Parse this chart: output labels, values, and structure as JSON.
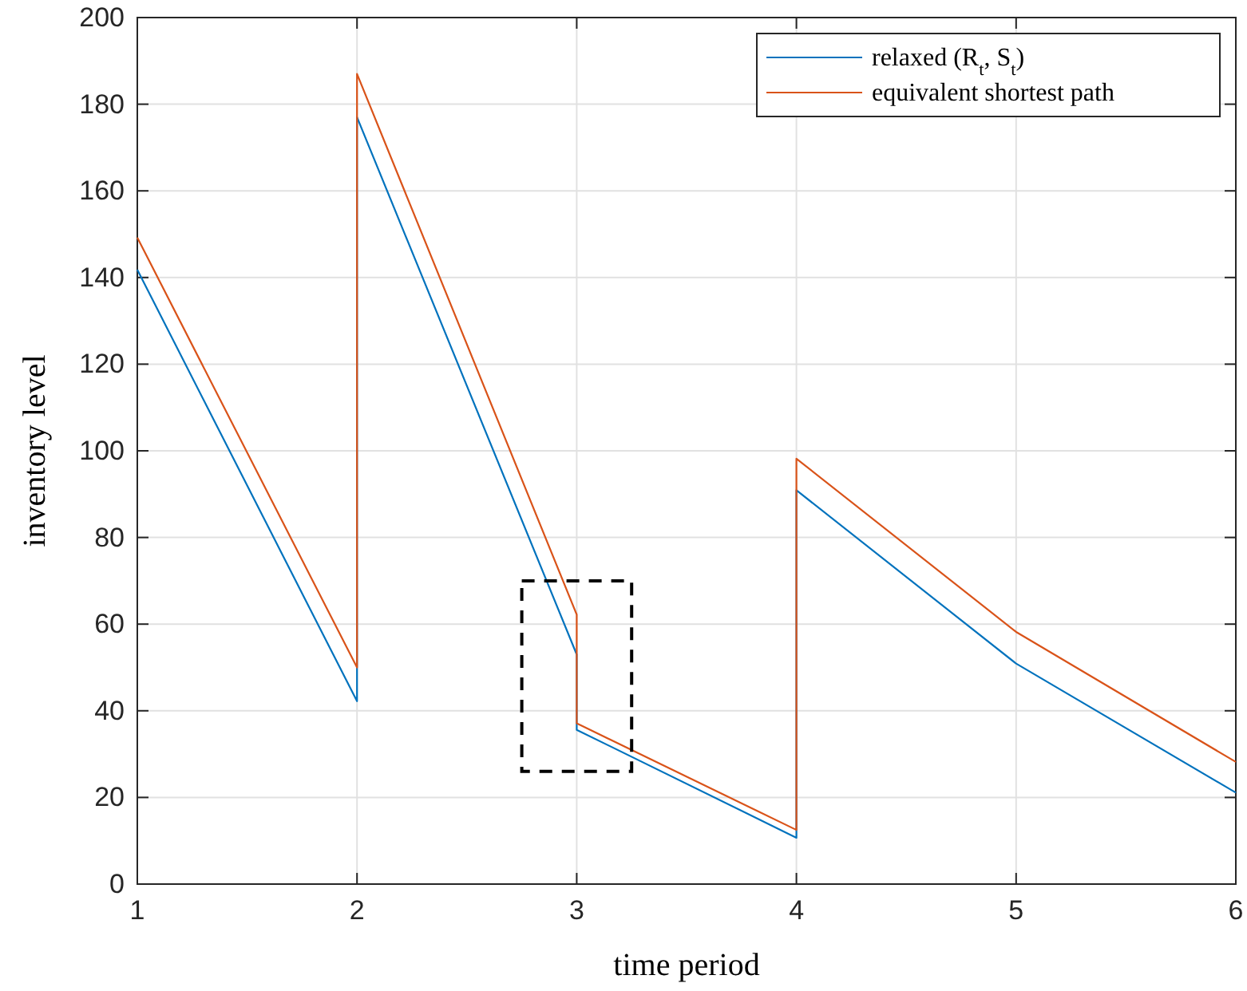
{
  "chart_data": {
    "type": "line",
    "xlabel": "time period",
    "ylabel": "inventory level",
    "xlim": [
      1,
      6
    ],
    "xticks": [
      1,
      2,
      3,
      4,
      5,
      6
    ],
    "ylim": [
      0,
      200
    ],
    "yticks": [
      0,
      20,
      40,
      60,
      80,
      100,
      120,
      140,
      160,
      180,
      200
    ],
    "grid": true,
    "legend": "top right",
    "line_style": "solid",
    "marker": "none",
    "series": [
      {
        "name": "relaxed (R$_{t}$, S$_{t}$)",
        "color": "#0072bd",
        "x": [
          1,
          2,
          2,
          3,
          3,
          4,
          4,
          5,
          6
        ],
        "values": [
          141.8,
          42.2,
          177,
          53,
          35.6,
          10.7,
          90.9,
          50.9,
          21.1
        ]
      },
      {
        "name": "equivalent shortest path",
        "color": "#d95319",
        "x": [
          1,
          2,
          2,
          3,
          3,
          4,
          4,
          5,
          6
        ],
        "values": [
          149.2,
          50,
          187,
          62.2,
          37.1,
          12.5,
          98.2,
          58.2,
          28.2
        ]
      }
    ]
  }
}
